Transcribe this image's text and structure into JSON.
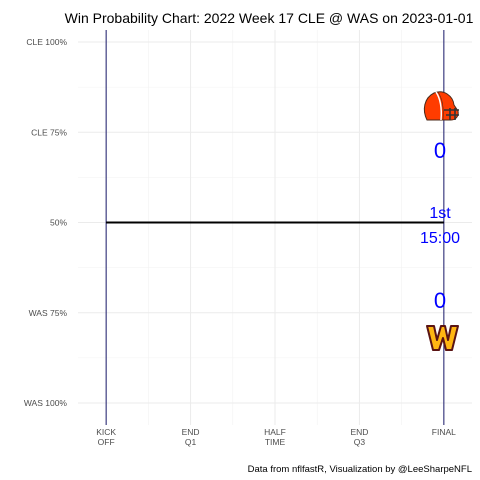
{
  "chart_data": {
    "type": "line",
    "title": "Win Probability Chart: 2022 Week 17 CLE @ WAS on 2023-01-01",
    "caption": "Data from nflfastR, Visualization by @LeeSharpeNFL",
    "xlabel": "",
    "ylabel": "",
    "x_ticks": [
      {
        "value": 0,
        "label": [
          "KICK",
          "OFF"
        ]
      },
      {
        "value": 900,
        "label": [
          "END",
          "Q1"
        ]
      },
      {
        "value": 1800,
        "label": [
          "HALF",
          "TIME"
        ]
      },
      {
        "value": 2700,
        "label": [
          "END",
          "Q3"
        ]
      },
      {
        "value": 3600,
        "label": [
          "FINAL"
        ]
      }
    ],
    "y_ticks": [
      {
        "value": 1.0,
        "label": "CLE 100%"
      },
      {
        "value": 0.75,
        "label": "CLE 75%"
      },
      {
        "value": 0.5,
        "label": "50%"
      },
      {
        "value": 0.25,
        "label": "WAS 75%"
      },
      {
        "value": 0.0,
        "label": "WAS 100%"
      }
    ],
    "xlim": [
      -300,
      3900
    ],
    "ylim": [
      0,
      1
    ],
    "grid": true,
    "vertical_lines": [
      0,
      3600
    ],
    "series": [
      {
        "x": [
          0,
          3600
        ],
        "y": [
          0.5,
          0.5
        ],
        "color": "#000000"
      }
    ],
    "annotations": {
      "cle_score": "0",
      "was_score": "0",
      "quarter": "1st",
      "clock": "15:00"
    },
    "colors": {
      "score_text": "#0000ff",
      "game_line": "#000000",
      "boundary": "#1a1a6b",
      "grid_major": "#ebebeb",
      "cle_helmet": "#ff3c00",
      "was_logo": "#ffb612",
      "was_logo_outline": "#5a1414"
    },
    "logos": {
      "top": "cleveland-browns-helmet-logo",
      "bottom": "washington-commanders-w-logo"
    }
  }
}
